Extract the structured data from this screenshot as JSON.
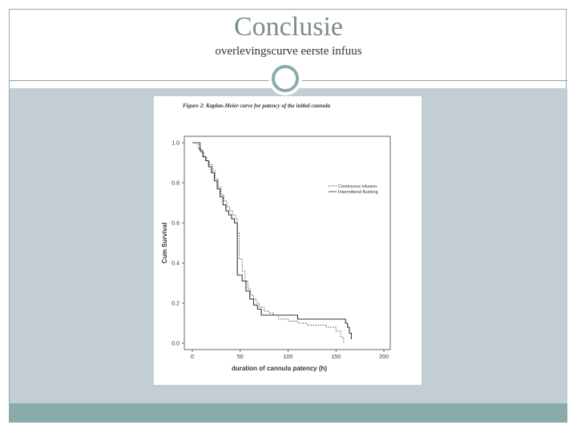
{
  "slide": {
    "title": "Conclusie",
    "subtitle": "overlevingscurve eerste infuus"
  },
  "colors": {
    "accent": "#8aabaa",
    "content_bg": "#c3ced4"
  },
  "chart_data": {
    "type": "line",
    "title": "Figure 2: Kaplan-Meier curve for patency of the initial cannula",
    "xlabel": "duration of cannula patency (h)",
    "ylabel": "Cum Survival",
    "xlim": [
      0,
      200
    ],
    "ylim": [
      0.0,
      1.0
    ],
    "xticks": [
      "0",
      "50",
      "100",
      "150",
      "200"
    ],
    "yticks": [
      "0.0",
      "0.2",
      "0.4",
      "0.6",
      "0.8",
      "1.0"
    ],
    "legend_position": "right",
    "series": [
      {
        "name": "Continuous infusion",
        "style": "dotted",
        "x": [
          0,
          6,
          9,
          12,
          15,
          18,
          21,
          24,
          27,
          30,
          33,
          36,
          39,
          42,
          45,
          47,
          49,
          52,
          55,
          58,
          61,
          64,
          67,
          70,
          75,
          80,
          85,
          90,
          100,
          110,
          120,
          130,
          140,
          150,
          155,
          158
        ],
        "y": [
          1.0,
          0.97,
          0.95,
          0.93,
          0.91,
          0.89,
          0.86,
          0.82,
          0.78,
          0.74,
          0.71,
          0.68,
          0.66,
          0.64,
          0.62,
          0.55,
          0.42,
          0.36,
          0.31,
          0.27,
          0.24,
          0.22,
          0.2,
          0.18,
          0.16,
          0.15,
          0.14,
          0.12,
          0.11,
          0.1,
          0.09,
          0.09,
          0.08,
          0.06,
          0.03,
          0.0
        ]
      },
      {
        "name": "Intermittend flushing",
        "style": "solid",
        "x": [
          0,
          8,
          11,
          14,
          17,
          20,
          23,
          26,
          29,
          32,
          35,
          38,
          41,
          44,
          47,
          52,
          56,
          60,
          64,
          68,
          72,
          80,
          90,
          100,
          110,
          120,
          130,
          140,
          150,
          158,
          160,
          162,
          164,
          166
        ],
        "y": [
          1.0,
          0.96,
          0.93,
          0.91,
          0.88,
          0.85,
          0.81,
          0.77,
          0.73,
          0.69,
          0.66,
          0.64,
          0.62,
          0.6,
          0.34,
          0.31,
          0.26,
          0.22,
          0.19,
          0.17,
          0.14,
          0.14,
          0.14,
          0.14,
          0.12,
          0.12,
          0.12,
          0.12,
          0.12,
          0.12,
          0.1,
          0.08,
          0.05,
          0.02
        ]
      }
    ]
  }
}
